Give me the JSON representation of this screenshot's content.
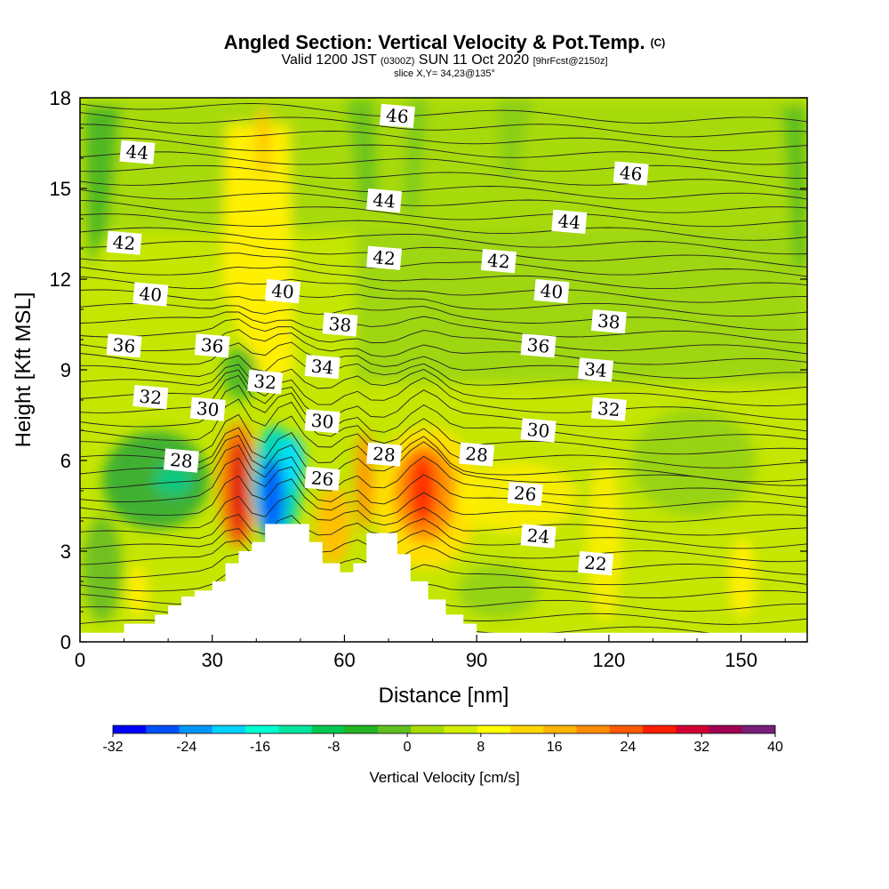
{
  "title": {
    "main": "Angled Section: Vertical Velocity & Pot.Temp.",
    "mark": "(C)",
    "valid_prefix": "Valid 1200 JST",
    "valid_zulu": "(0300Z)",
    "valid_date": "SUN 11 Oct 2020",
    "valid_fcst": "[9hrFcst@2150z]",
    "slice": "slice X,Y= 34,23@135°"
  },
  "chart_data": {
    "type": "heatmap",
    "xlabel": "Distance [nm]",
    "ylabel": "Height [Kft MSL]",
    "xlim": [
      0,
      165
    ],
    "ylim": [
      0,
      18
    ],
    "x_ticks": [
      "0",
      "30",
      "60",
      "90",
      "120",
      "150"
    ],
    "x_tick_values": [
      0,
      30,
      60,
      90,
      120,
      150
    ],
    "y_ticks": [
      "0",
      "3",
      "6",
      "9",
      "12",
      "15",
      "18"
    ],
    "y_tick_values": [
      0,
      3,
      6,
      9,
      12,
      15,
      18
    ],
    "colorbar": {
      "title": "Vertical Velocity [cm/s]",
      "labels": [
        "-32",
        "-24",
        "-16",
        "-8",
        "0",
        "8",
        "16",
        "24",
        "32",
        "40"
      ],
      "label_values": [
        -32,
        -24,
        -16,
        -8,
        0,
        8,
        16,
        24,
        32,
        40
      ],
      "min": -32,
      "max": 40,
      "step": 4,
      "colors": [
        "#0000ff",
        "#0050ff",
        "#0096ff",
        "#00d2ff",
        "#00ffd2",
        "#00e6a0",
        "#00c850",
        "#22b422",
        "#60c020",
        "#a8dc00",
        "#d2ee00",
        "#ffff00",
        "#ffd700",
        "#ffb400",
        "#ff8c00",
        "#ff5a00",
        "#ff1e00",
        "#d20032",
        "#a00050",
        "#781e78"
      ]
    },
    "terrain_nm_kft": [
      [
        0,
        0.3
      ],
      [
        10,
        0.3
      ],
      [
        10,
        0.6
      ],
      [
        17,
        0.6
      ],
      [
        17,
        0.9
      ],
      [
        20,
        0.9
      ],
      [
        20,
        1.2
      ],
      [
        23,
        1.2
      ],
      [
        23,
        1.5
      ],
      [
        26,
        1.5
      ],
      [
        26,
        1.7
      ],
      [
        30,
        1.7
      ],
      [
        30,
        2.0
      ],
      [
        33,
        2.0
      ],
      [
        33,
        2.6
      ],
      [
        36,
        2.6
      ],
      [
        36,
        3.0
      ],
      [
        39,
        3.0
      ],
      [
        39,
        3.3
      ],
      [
        42,
        3.3
      ],
      [
        42,
        3.9
      ],
      [
        52,
        3.9
      ],
      [
        52,
        3.3
      ],
      [
        55,
        3.3
      ],
      [
        55,
        2.6
      ],
      [
        59,
        2.6
      ],
      [
        59,
        2.3
      ],
      [
        62,
        2.3
      ],
      [
        62,
        2.6
      ],
      [
        65,
        2.6
      ],
      [
        65,
        3.6
      ],
      [
        72,
        3.6
      ],
      [
        72,
        2.9
      ],
      [
        75,
        2.9
      ],
      [
        75,
        2.0
      ],
      [
        79,
        2.0
      ],
      [
        79,
        1.4
      ],
      [
        83,
        1.4
      ],
      [
        83,
        0.9
      ],
      [
        87,
        0.9
      ],
      [
        87,
        0.6
      ],
      [
        90,
        0.6
      ],
      [
        90,
        0.3
      ],
      [
        165,
        0.3
      ]
    ],
    "theta_contour_labels": [
      {
        "text": "46",
        "x": 72,
        "y": 17.4
      },
      {
        "text": "44",
        "x": 13,
        "y": 16.2
      },
      {
        "text": "46",
        "x": 125,
        "y": 15.5
      },
      {
        "text": "44",
        "x": 69,
        "y": 14.6
      },
      {
        "text": "44",
        "x": 111,
        "y": 13.9
      },
      {
        "text": "42",
        "x": 10,
        "y": 13.2
      },
      {
        "text": "42",
        "x": 69,
        "y": 12.7
      },
      {
        "text": "42",
        "x": 95,
        "y": 12.6
      },
      {
        "text": "40",
        "x": 16,
        "y": 11.5
      },
      {
        "text": "40",
        "x": 46,
        "y": 11.6
      },
      {
        "text": "40",
        "x": 107,
        "y": 11.6
      },
      {
        "text": "38",
        "x": 59,
        "y": 10.5
      },
      {
        "text": "38",
        "x": 120,
        "y": 10.6
      },
      {
        "text": "36",
        "x": 10,
        "y": 9.8
      },
      {
        "text": "36",
        "x": 30,
        "y": 9.8
      },
      {
        "text": "36",
        "x": 104,
        "y": 9.8
      },
      {
        "text": "34",
        "x": 55,
        "y": 9.1
      },
      {
        "text": "34",
        "x": 117,
        "y": 9.0
      },
      {
        "text": "32",
        "x": 42,
        "y": 8.6
      },
      {
        "text": "32",
        "x": 16,
        "y": 8.1
      },
      {
        "text": "32",
        "x": 120,
        "y": 7.7
      },
      {
        "text": "30",
        "x": 29,
        "y": 7.7
      },
      {
        "text": "30",
        "x": 55,
        "y": 7.3
      },
      {
        "text": "30",
        "x": 104,
        "y": 7.0
      },
      {
        "text": "28",
        "x": 23,
        "y": 6.0
      },
      {
        "text": "28",
        "x": 69,
        "y": 6.2
      },
      {
        "text": "28",
        "x": 90,
        "y": 6.2
      },
      {
        "text": "26",
        "x": 55,
        "y": 5.4
      },
      {
        "text": "26",
        "x": 101,
        "y": 4.9
      },
      {
        "text": "24",
        "x": 104,
        "y": 3.5
      },
      {
        "text": "22",
        "x": 117,
        "y": 2.6
      }
    ]
  }
}
